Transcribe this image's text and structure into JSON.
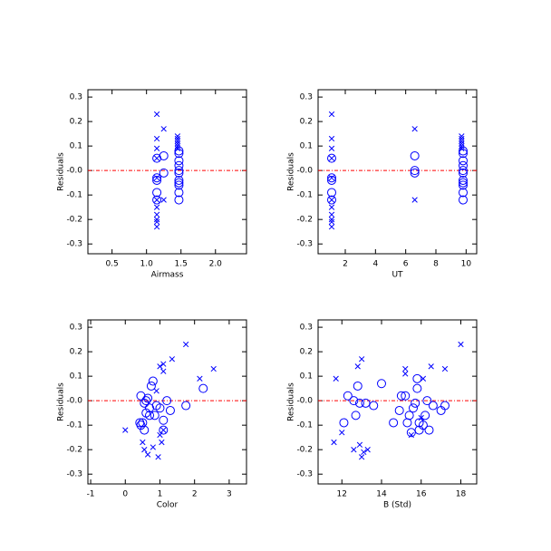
{
  "chart_data": [
    {
      "type": "scatter",
      "xlabel": "Airmass",
      "ylabel": "Residuals",
      "xlim": [
        0.15,
        2.45
      ],
      "ylim": [
        -0.34,
        0.33
      ],
      "xticks": [
        0.5,
        {
          "value": 1,
          "label": "1.0"
        },
        1.5,
        {
          "value": 2,
          "label": "2.0"
        }
      ],
      "yticks": [
        -0.3,
        -0.2,
        -0.1,
        {
          "value": 0,
          "label": "-0.0"
        },
        0.1,
        0.2,
        0.3
      ],
      "hline": 0,
      "hline_color": "#ff0000",
      "series": [
        {
          "marker": "circle",
          "color": "#0000ff",
          "x": [
            1.15,
            1.15,
            1.15,
            1.15,
            1.15,
            1.25,
            1.25,
            1.47,
            1.47,
            1.47,
            1.47,
            1.47,
            1.47,
            1.47,
            1.47,
            1.47,
            1.47,
            1.47
          ],
          "values": [
            0.05,
            -0.03,
            -0.04,
            -0.09,
            -0.12,
            0.06,
            -0.01,
            0.08,
            0.07,
            0.04,
            0.02,
            0.0,
            -0.01,
            -0.04,
            -0.05,
            -0.06,
            -0.09,
            -0.12
          ]
        },
        {
          "marker": "x",
          "color": "#0000ff",
          "x": [
            1.15,
            1.15,
            1.15,
            1.15,
            1.15,
            1.15,
            1.15,
            1.15,
            1.15,
            1.15,
            1.15,
            1.25,
            1.25,
            1.45,
            1.45,
            1.45,
            1.45,
            1.45,
            1.45
          ],
          "values": [
            0.23,
            0.13,
            0.09,
            0.05,
            -0.03,
            -0.12,
            -0.15,
            -0.18,
            -0.2,
            -0.21,
            -0.23,
            0.17,
            -0.12,
            0.14,
            0.13,
            0.12,
            0.11,
            0.1,
            0.09
          ]
        }
      ]
    },
    {
      "type": "scatter",
      "xlabel": "UT",
      "ylabel": "Residuals",
      "xlim": [
        0.2,
        10.7
      ],
      "ylim": [
        -0.34,
        0.33
      ],
      "xticks": [
        2,
        4,
        6,
        8,
        10
      ],
      "yticks": [
        -0.3,
        -0.2,
        -0.1,
        {
          "value": 0,
          "label": "-0.0"
        },
        0.1,
        0.2,
        0.3
      ],
      "hline": 0,
      "hline_color": "#ff0000",
      "series": [
        {
          "marker": "circle",
          "color": "#0000ff",
          "x": [
            1.1,
            1.1,
            1.1,
            1.1,
            1.1,
            6.6,
            6.6,
            6.6,
            9.8,
            9.8,
            9.8,
            9.8,
            9.8,
            9.8,
            9.8,
            9.8,
            9.8,
            9.8,
            9.8
          ],
          "values": [
            0.05,
            -0.03,
            -0.04,
            -0.09,
            -0.12,
            0.06,
            -0.01,
            0.0,
            0.08,
            0.07,
            0.04,
            0.02,
            0.0,
            -0.01,
            -0.04,
            -0.05,
            -0.06,
            -0.09,
            -0.12
          ]
        },
        {
          "marker": "x",
          "color": "#0000ff",
          "x": [
            1.1,
            1.1,
            1.1,
            1.1,
            1.1,
            1.1,
            1.1,
            1.1,
            1.1,
            1.1,
            1.1,
            6.6,
            6.6,
            9.7,
            9.7,
            9.7,
            9.7,
            9.7,
            9.7
          ],
          "values": [
            0.23,
            0.13,
            0.09,
            0.05,
            -0.03,
            -0.12,
            -0.15,
            -0.18,
            -0.2,
            -0.21,
            -0.23,
            0.17,
            -0.12,
            0.14,
            0.13,
            0.12,
            0.11,
            0.1,
            0.09
          ]
        }
      ]
    },
    {
      "type": "scatter",
      "xlabel": "Color",
      "ylabel": "Residuals",
      "xlim": [
        -1.08,
        3.5
      ],
      "ylim": [
        -0.34,
        0.33
      ],
      "xticks": [
        -1,
        0,
        1,
        2,
        3
      ],
      "yticks": [
        -0.3,
        -0.2,
        -0.1,
        {
          "value": 0,
          "label": "-0.0"
        },
        0.1,
        0.2,
        0.3
      ],
      "hline": 0,
      "hline_color": "#ff0000",
      "series": [
        {
          "marker": "circle",
          "color": "#0000ff",
          "x": [
            0.45,
            0.5,
            0.42,
            0.55,
            0.6,
            0.65,
            0.7,
            0.55,
            0.6,
            0.75,
            0.8,
            0.85,
            0.9,
            1.0,
            1.1,
            1.1,
            1.2,
            1.3,
            1.75,
            2.25,
            0.7,
            0.45
          ],
          "values": [
            0.02,
            -0.09,
            -0.09,
            -0.01,
            0.0,
            0.01,
            -0.03,
            -0.12,
            -0.05,
            0.06,
            0.08,
            -0.06,
            -0.02,
            -0.03,
            -0.08,
            -0.12,
            0.0,
            -0.04,
            -0.02,
            0.05,
            -0.06,
            -0.1
          ]
        },
        {
          "marker": "x",
          "color": "#0000ff",
          "x": [
            0.0,
            0.5,
            0.55,
            0.65,
            0.8,
            0.95,
            1.0,
            1.05,
            1.0,
            1.1,
            1.1,
            1.35,
            1.75,
            2.15,
            2.55,
            0.9,
            1.1
          ],
          "values": [
            -0.12,
            -0.17,
            -0.2,
            -0.22,
            -0.19,
            -0.23,
            -0.14,
            -0.17,
            0.14,
            0.12,
            0.15,
            0.17,
            0.23,
            0.09,
            0.13,
            0.04,
            -0.12
          ]
        }
      ]
    },
    {
      "type": "scatter",
      "xlabel": "B (Std)",
      "ylabel": "Residuals",
      "xlim": [
        10.8,
        18.8
      ],
      "ylim": [
        -0.34,
        0.33
      ],
      "xticks": [
        12,
        14,
        16,
        18
      ],
      "yticks": [
        -0.3,
        -0.2,
        -0.1,
        {
          "value": 0,
          "label": "-0.0"
        },
        0.1,
        0.2,
        0.3
      ],
      "hline": 0,
      "hline_color": "#ff0000",
      "series": [
        {
          "marker": "circle",
          "color": "#0000ff",
          "x": [
            12.1,
            12.3,
            12.6,
            12.7,
            12.8,
            12.9,
            13.2,
            13.6,
            14.0,
            14.6,
            15.0,
            15.2,
            15.3,
            15.4,
            15.6,
            15.5,
            15.8,
            15.8,
            15.7,
            15.9,
            16.1,
            16.2,
            16.3,
            16.4,
            16.6,
            17.0,
            17.2,
            15.9,
            14.9
          ],
          "values": [
            -0.09,
            0.02,
            0.0,
            -0.06,
            0.06,
            -0.01,
            -0.01,
            -0.02,
            0.07,
            -0.09,
            0.02,
            0.02,
            -0.09,
            -0.06,
            -0.03,
            -0.13,
            0.09,
            0.05,
            -0.01,
            -0.09,
            -0.1,
            -0.06,
            0.0,
            -0.12,
            -0.02,
            -0.04,
            -0.02,
            -0.12,
            -0.04
          ]
        },
        {
          "marker": "x",
          "color": "#0000ff",
          "x": [
            11.6,
            11.7,
            12.0,
            12.6,
            12.8,
            13.0,
            12.9,
            13.0,
            13.1,
            13.3,
            15.2,
            15.2,
            15.5,
            16.0,
            16.5,
            17.2,
            18.0,
            16.1
          ],
          "values": [
            -0.17,
            0.09,
            -0.13,
            -0.2,
            0.14,
            0.17,
            -0.18,
            -0.23,
            -0.21,
            -0.2,
            0.13,
            0.11,
            -0.14,
            -0.07,
            0.14,
            0.13,
            0.23,
            0.09
          ]
        }
      ]
    }
  ]
}
